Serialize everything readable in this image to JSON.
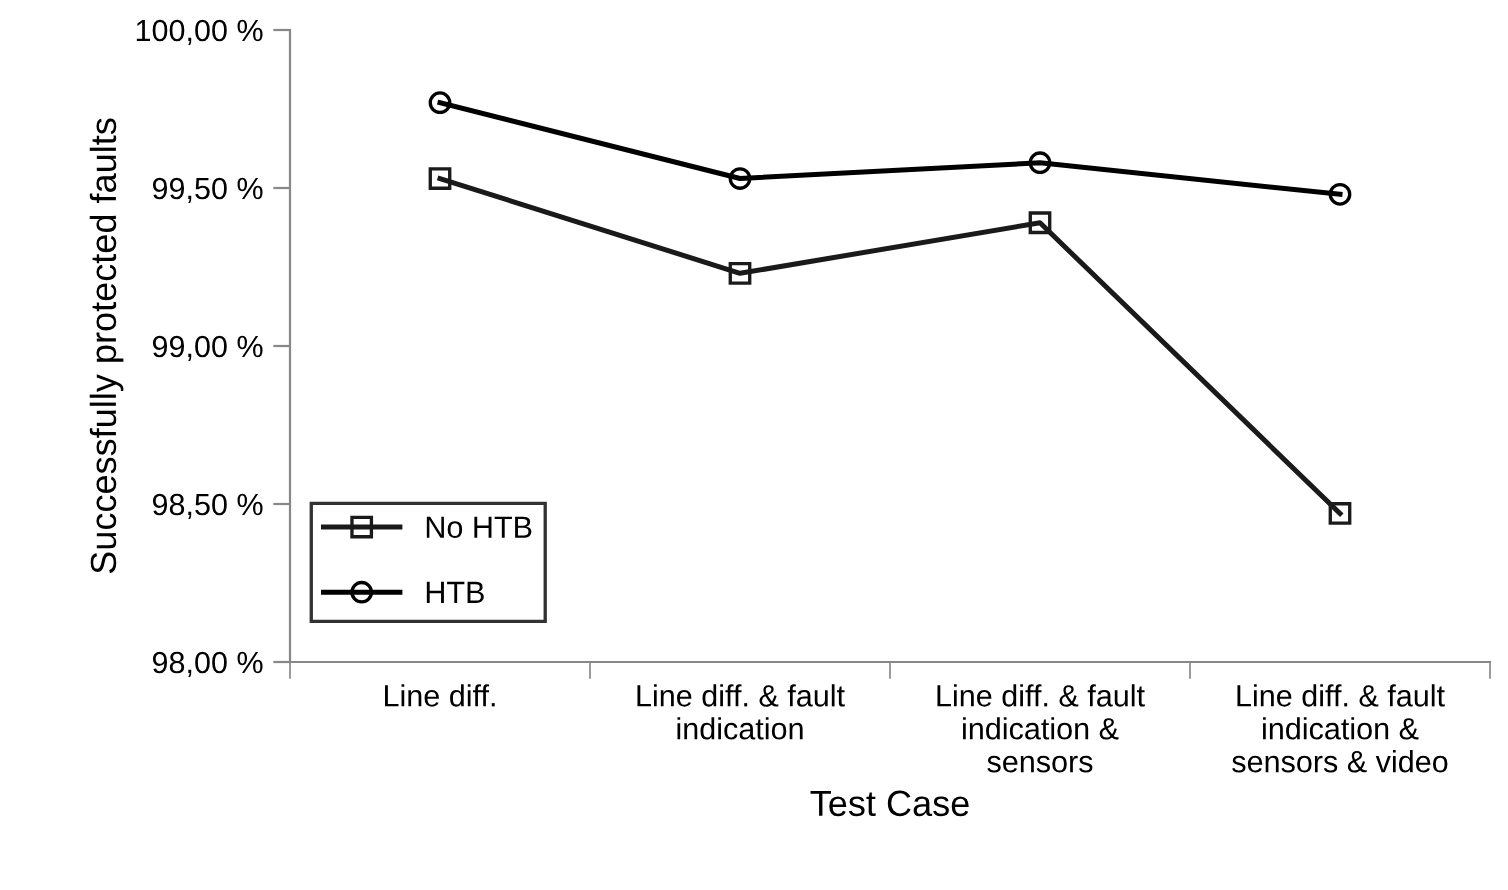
{
  "chart_data": {
    "type": "line",
    "xlabel": "Test Case",
    "ylabel": "Successfully protected faults",
    "categories": [
      "Line diff.",
      "Line diff. & fault\nindication",
      "Line diff. & fault\nindication &\nsensors",
      "Line diff. & fault\nindication &\nsensors & video"
    ],
    "series": [
      {
        "name": "No HTB",
        "color": "#1a1a1a",
        "marker": "square",
        "values": [
          99.53,
          99.23,
          99.39,
          98.47
        ]
      },
      {
        "name": "HTB",
        "color": "#000000",
        "marker": "circle",
        "values": [
          99.77,
          99.53,
          99.58,
          99.48
        ]
      }
    ],
    "ylim": [
      98,
      100
    ],
    "yticks": [
      {
        "value": 98,
        "label": "98,00 %"
      },
      {
        "value": 98.5,
        "label": "98,50 %"
      },
      {
        "value": 99,
        "label": "99,00 %"
      },
      {
        "value": 99.5,
        "label": "99,50 %"
      },
      {
        "value": 100,
        "label": "100,00 %"
      }
    ],
    "grid": false,
    "legend": "bottom left",
    "line_style": "solid"
  }
}
